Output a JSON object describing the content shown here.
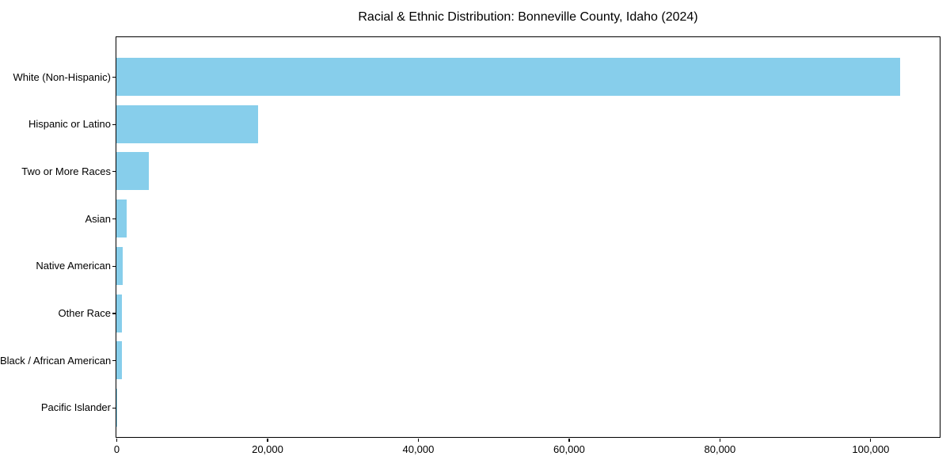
{
  "title": "Racial & Ethnic Distribution: Bonneville County, Idaho (2024)",
  "colors": {
    "bar": "#87CEEB",
    "spine": "#000000",
    "background": "#FFFFFF",
    "text": "#000000"
  },
  "chart_data": {
    "type": "bar",
    "orientation": "horizontal",
    "title": "Racial & Ethnic Distribution: Bonneville County, Idaho (2024)",
    "categories": [
      "White (Non-Hispanic)",
      "Hispanic or Latino",
      "Two or More Races",
      "Asian",
      "Native American",
      "Other Race",
      "Black / African American",
      "Pacific Islander"
    ],
    "values": [
      104000,
      18800,
      4300,
      1400,
      800,
      700,
      750,
      150
    ],
    "xlabel": "",
    "ylabel": "",
    "xlim": [
      0,
      109200
    ],
    "xticks": [
      0,
      20000,
      40000,
      60000,
      80000,
      100000
    ],
    "xtick_labels": [
      "0",
      "20,000",
      "40,000",
      "60,000",
      "80,000",
      "100,000"
    ],
    "bar_color": "#87CEEB",
    "grid": false,
    "legend": null
  }
}
